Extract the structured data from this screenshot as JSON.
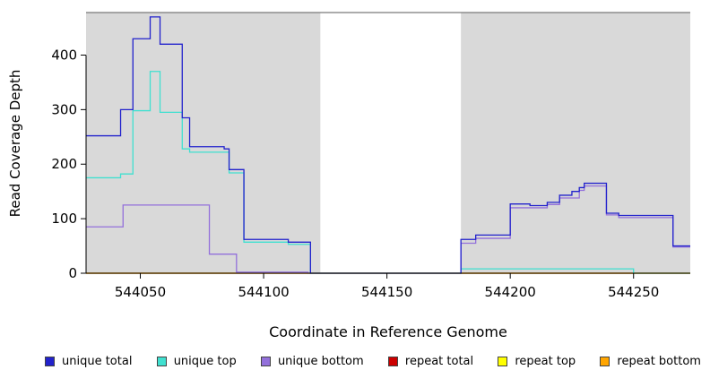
{
  "chart_data": {
    "type": "line",
    "subtype": "step-after",
    "title": "",
    "xlabel": "Coordinate in Reference Genome",
    "ylabel": "Read Coverage Depth",
    "xlim": [
      544028,
      544273
    ],
    "ylim": [
      0,
      478
    ],
    "x_ticks": [
      544050,
      544100,
      544150,
      544200,
      544250
    ],
    "y_ticks": [
      0,
      100,
      200,
      300,
      400
    ],
    "grid": false,
    "legend_position": "bottom",
    "panel_background": "#d9d9d9",
    "gap_region": {
      "from": 544123,
      "to": 544180,
      "background": "#ffffff"
    },
    "top_border_color": "#7a7a7a",
    "axis_color": "#000000",
    "draw_order": [
      3,
      4,
      5,
      2,
      1,
      0
    ],
    "series": [
      {
        "id": "unique-total",
        "name": "unique total",
        "color": "#2222cc",
        "steps": [
          [
            544028,
            252
          ],
          [
            544042,
            300
          ],
          [
            544047,
            430
          ],
          [
            544054,
            470
          ],
          [
            544058,
            420
          ],
          [
            544067,
            285
          ],
          [
            544070,
            232
          ],
          [
            544084,
            228
          ],
          [
            544086,
            190
          ],
          [
            544092,
            62
          ],
          [
            544110,
            57
          ],
          [
            544119,
            0
          ],
          [
            544180,
            62
          ],
          [
            544186,
            70
          ],
          [
            544200,
            127
          ],
          [
            544208,
            124
          ],
          [
            544215,
            130
          ],
          [
            544220,
            143
          ],
          [
            544225,
            150
          ],
          [
            544228,
            157
          ],
          [
            544230,
            165
          ],
          [
            544239,
            110
          ],
          [
            544244,
            106
          ],
          [
            544266,
            50
          ]
        ]
      },
      {
        "id": "unique-top",
        "name": "unique top",
        "color": "#40e0d0",
        "steps": [
          [
            544028,
            175
          ],
          [
            544042,
            182
          ],
          [
            544047,
            298
          ],
          [
            544054,
            370
          ],
          [
            544058,
            295
          ],
          [
            544067,
            228
          ],
          [
            544070,
            222
          ],
          [
            544086,
            184
          ],
          [
            544092,
            57
          ],
          [
            544110,
            53
          ],
          [
            544119,
            0
          ],
          [
            544180,
            8
          ],
          [
            544250,
            0
          ]
        ]
      },
      {
        "id": "unique-bottom",
        "name": "unique bottom",
        "color": "#9370db",
        "steps": [
          [
            544028,
            85
          ],
          [
            544043,
            125
          ],
          [
            544078,
            35
          ],
          [
            544089,
            2
          ],
          [
            544118,
            0
          ],
          [
            544180,
            55
          ],
          [
            544186,
            64
          ],
          [
            544200,
            120
          ],
          [
            544215,
            126
          ],
          [
            544220,
            138
          ],
          [
            544228,
            152
          ],
          [
            544230,
            160
          ],
          [
            544239,
            107
          ],
          [
            544244,
            102
          ],
          [
            544266,
            48
          ]
        ]
      },
      {
        "id": "repeat-total",
        "name": "repeat total",
        "color": "#cc0000",
        "steps": [
          [
            544028,
            0
          ]
        ]
      },
      {
        "id": "repeat-top",
        "name": "repeat top",
        "color": "#ffff00",
        "steps": [
          [
            544028,
            0
          ]
        ]
      },
      {
        "id": "repeat-bottom",
        "name": "repeat bottom",
        "color": "#ffa500",
        "steps": [
          [
            544028,
            0
          ]
        ]
      }
    ]
  }
}
